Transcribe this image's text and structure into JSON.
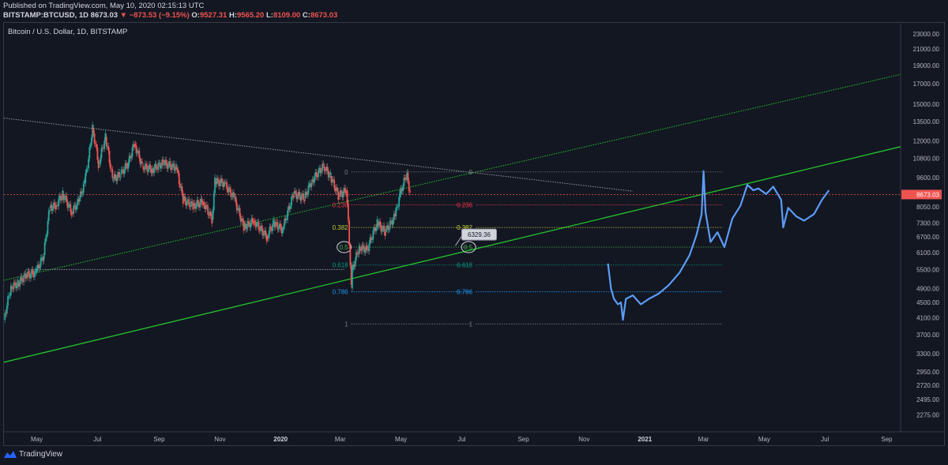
{
  "header": {
    "published": "Published on TradingView.com, May 10, 2020 02:15:13 UTC",
    "symbol": "BITSTAMP:BTCUSD, 1D",
    "last": "8673.03",
    "change_arrow": "▼",
    "change": "−873.53 (−9.15%)",
    "o_label": "O:",
    "o_value": "9527.31",
    "h_label": "H:",
    "h_value": "9565.20",
    "l_label": "L:",
    "l_value": "8109.00",
    "c_label": "C:",
    "c_value": "8673.03"
  },
  "title": "Bitcoin / U.S. Dollar, 1D, BITSTAMP",
  "footer": {
    "brand": "TradingView"
  },
  "colors": {
    "background": "#131722",
    "candle_up": "#26a69a",
    "candle_down": "#ef5350",
    "projection": "#5b9cf6",
    "trendline": "#22c32a",
    "price_line": "#ef5350",
    "fib_0": "#787b86",
    "fib_236": "#f23645",
    "fib_382": "#c0ca33",
    "fib_5": "#4caf50",
    "fib_618": "#089981",
    "fib_786": "#2196f3",
    "fib_1": "#787b86"
  },
  "chart_data": {
    "type": "line",
    "title": "Bitcoin / U.S. Dollar, 1D, BITSTAMP",
    "xlabel": "",
    "ylabel": "",
    "y_scale": "log",
    "ylim": [
      2050,
      24500
    ],
    "xlim": [
      "2019-03-29",
      "2021-09-15"
    ],
    "grid": false,
    "y_ticks": [
      "2275.00",
      "2495.00",
      "2720.00",
      "2950.00",
      "3300.00",
      "3700.00",
      "4100.00",
      "4500.00",
      "4900.00",
      "5500.00",
      "6100.00",
      "6700.00",
      "7300.00",
      "8050.00",
      "9600.00",
      "10800.00",
      "12000.00",
      "13500.00",
      "15000.00",
      "17000.00",
      "19000.00",
      "21000.00",
      "23000.00"
    ],
    "x_ticks": [
      {
        "label": "May",
        "date": "2019-05-01"
      },
      {
        "label": "Jul",
        "date": "2019-07-01"
      },
      {
        "label": "Sep",
        "date": "2019-09-01"
      },
      {
        "label": "Nov",
        "date": "2019-11-01"
      },
      {
        "label": "2020",
        "date": "2020-01-01"
      },
      {
        "label": "Mar",
        "date": "2020-03-01"
      },
      {
        "label": "May",
        "date": "2020-05-01"
      },
      {
        "label": "Jul",
        "date": "2020-07-01"
      },
      {
        "label": "Sep",
        "date": "2020-09-01"
      },
      {
        "label": "Nov",
        "date": "2020-11-01"
      },
      {
        "label": "2021",
        "date": "2021-01-01"
      },
      {
        "label": "Mar",
        "date": "2021-03-01"
      },
      {
        "label": "May",
        "date": "2021-05-01"
      },
      {
        "label": "Jul",
        "date": "2021-07-01"
      },
      {
        "label": "Sep",
        "date": "2021-09-01"
      }
    ],
    "last_price": {
      "value": 8673.03,
      "label": "8673.03"
    },
    "price_annotation": {
      "label": "6329.36",
      "date": "2020-07-01",
      "value": 6800
    },
    "series": [
      {
        "name": "BTCUSD",
        "style": "candles",
        "points": [
          {
            "x": "2019-03-29",
            "y": 4050
          },
          {
            "x": "2019-04-05",
            "y": 4950
          },
          {
            "x": "2019-04-12",
            "y": 5050
          },
          {
            "x": "2019-04-20",
            "y": 5300
          },
          {
            "x": "2019-04-30",
            "y": 5400
          },
          {
            "x": "2019-05-08",
            "y": 6000
          },
          {
            "x": "2019-05-14",
            "y": 8000
          },
          {
            "x": "2019-05-20",
            "y": 8100
          },
          {
            "x": "2019-05-27",
            "y": 8700
          },
          {
            "x": "2019-06-05",
            "y": 7800
          },
          {
            "x": "2019-06-12",
            "y": 8300
          },
          {
            "x": "2019-06-18",
            "y": 9300
          },
          {
            "x": "2019-06-22",
            "y": 10800
          },
          {
            "x": "2019-06-26",
            "y": 13000
          },
          {
            "x": "2019-07-02",
            "y": 10400
          },
          {
            "x": "2019-07-09",
            "y": 12300
          },
          {
            "x": "2019-07-16",
            "y": 9500
          },
          {
            "x": "2019-07-24",
            "y": 9800
          },
          {
            "x": "2019-08-01",
            "y": 10500
          },
          {
            "x": "2019-08-07",
            "y": 11800
          },
          {
            "x": "2019-08-15",
            "y": 10300
          },
          {
            "x": "2019-08-25",
            "y": 10100
          },
          {
            "x": "2019-09-05",
            "y": 10500
          },
          {
            "x": "2019-09-18",
            "y": 10200
          },
          {
            "x": "2019-09-25",
            "y": 8400
          },
          {
            "x": "2019-10-05",
            "y": 8100
          },
          {
            "x": "2019-10-15",
            "y": 8300
          },
          {
            "x": "2019-10-24",
            "y": 7450
          },
          {
            "x": "2019-10-27",
            "y": 9400
          },
          {
            "x": "2019-11-05",
            "y": 9300
          },
          {
            "x": "2019-11-15",
            "y": 8500
          },
          {
            "x": "2019-11-25",
            "y": 7100
          },
          {
            "x": "2019-12-05",
            "y": 7400
          },
          {
            "x": "2019-12-18",
            "y": 6700
          },
          {
            "x": "2019-12-25",
            "y": 7300
          },
          {
            "x": "2020-01-03",
            "y": 7000
          },
          {
            "x": "2020-01-14",
            "y": 8700
          },
          {
            "x": "2020-01-25",
            "y": 8500
          },
          {
            "x": "2020-02-01",
            "y": 9400
          },
          {
            "x": "2020-02-13",
            "y": 10300
          },
          {
            "x": "2020-02-20",
            "y": 9700
          },
          {
            "x": "2020-02-28",
            "y": 8600
          },
          {
            "x": "2020-03-07",
            "y": 8900
          },
          {
            "x": "2020-03-12",
            "y": 4900
          },
          {
            "x": "2020-03-13",
            "y": 5500
          },
          {
            "x": "2020-03-20",
            "y": 6300
          },
          {
            "x": "2020-03-28",
            "y": 6200
          },
          {
            "x": "2020-04-07",
            "y": 7300
          },
          {
            "x": "2020-04-15",
            "y": 6900
          },
          {
            "x": "2020-04-25",
            "y": 7600
          },
          {
            "x": "2020-04-30",
            "y": 8700
          },
          {
            "x": "2020-05-07",
            "y": 9900
          },
          {
            "x": "2020-05-10",
            "y": 8673
          }
        ]
      },
      {
        "name": "",
        "style": "line",
        "points": [
          {
            "x": "2020-11-25",
            "y": 5700
          },
          {
            "x": "2020-11-28",
            "y": 4900
          },
          {
            "x": "2020-12-01",
            "y": 4600
          },
          {
            "x": "2020-12-05",
            "y": 4450
          },
          {
            "x": "2020-12-08",
            "y": 4500
          },
          {
            "x": "2020-12-10",
            "y": 4050
          },
          {
            "x": "2020-12-13",
            "y": 4600
          },
          {
            "x": "2020-12-20",
            "y": 4700
          },
          {
            "x": "2020-12-28",
            "y": 4450
          },
          {
            "x": "2021-01-05",
            "y": 4600
          },
          {
            "x": "2021-01-15",
            "y": 4750
          },
          {
            "x": "2021-01-25",
            "y": 5000
          },
          {
            "x": "2021-02-05",
            "y": 5400
          },
          {
            "x": "2021-02-15",
            "y": 6000
          },
          {
            "x": "2021-02-22",
            "y": 6800
          },
          {
            "x": "2021-02-27",
            "y": 7700
          },
          {
            "x": "2021-03-01",
            "y": 10000
          },
          {
            "x": "2021-03-03",
            "y": 7800
          },
          {
            "x": "2021-03-08",
            "y": 6500
          },
          {
            "x": "2021-03-15",
            "y": 6900
          },
          {
            "x": "2021-03-22",
            "y": 6300
          },
          {
            "x": "2021-03-30",
            "y": 7500
          },
          {
            "x": "2021-04-07",
            "y": 8100
          },
          {
            "x": "2021-04-14",
            "y": 9200
          },
          {
            "x": "2021-04-20",
            "y": 8900
          },
          {
            "x": "2021-04-25",
            "y": 9000
          },
          {
            "x": "2021-05-03",
            "y": 8700
          },
          {
            "x": "2021-05-10",
            "y": 9100
          },
          {
            "x": "2021-05-18",
            "y": 8400
          },
          {
            "x": "2021-05-20",
            "y": 7100
          },
          {
            "x": "2021-05-25",
            "y": 8000
          },
          {
            "x": "2021-06-02",
            "y": 7600
          },
          {
            "x": "2021-06-10",
            "y": 7400
          },
          {
            "x": "2021-06-20",
            "y": 7700
          },
          {
            "x": "2021-06-28",
            "y": 8400
          },
          {
            "x": "2021-07-05",
            "y": 8900
          }
        ]
      }
    ],
    "trendlines": [
      {
        "name": "",
        "from": {
          "x": "2019-03-29",
          "y": 13800
        },
        "to": {
          "x": "2020-12-20",
          "y": 8850
        },
        "style": "dotted"
      },
      {
        "name": "",
        "from": {
          "x": "2019-03-29",
          "y": 3130
        },
        "to": {
          "x": "2021-09-15",
          "y": 11600
        },
        "style": "solid"
      },
      {
        "name": "",
        "from": {
          "x": "2019-03-29",
          "y": 5150
        },
        "to": {
          "x": "2021-09-15",
          "y": 18000
        },
        "style": "dotted"
      },
      {
        "name": "",
        "from": {
          "x": "2019-04-20",
          "y": 5500
        },
        "to": {
          "x": "2020-03-05",
          "y": 5500
        },
        "style": "dotted"
      }
    ],
    "fib_retracements": [
      {
        "anchor_from": "2020-03-12",
        "anchor_to": "2020-07-10",
        "levels": [
          {
            "label": "0",
            "value": 9950
          },
          {
            "label": "0.236",
            "value": 8150
          },
          {
            "label": "0.382",
            "value": 7100
          },
          {
            "label": "0.5",
            "value": 6300
          },
          {
            "label": "0.618",
            "value": 5650
          },
          {
            "label": "0.786",
            "value": 4800
          },
          {
            "label": "1",
            "value": 3950
          }
        ]
      },
      {
        "anchor_from": "2020-07-15",
        "anchor_to": "2021-03-20",
        "levels": [
          {
            "label": "0",
            "value": 9950
          },
          {
            "label": "0.236",
            "value": 8150
          },
          {
            "label": "0.382",
            "value": 7100
          },
          {
            "label": "0.5",
            "value": 6300
          },
          {
            "label": "0.618",
            "value": 5650
          },
          {
            "label": "0.786",
            "value": 4800
          },
          {
            "label": "1",
            "value": 3950
          }
        ]
      }
    ]
  }
}
